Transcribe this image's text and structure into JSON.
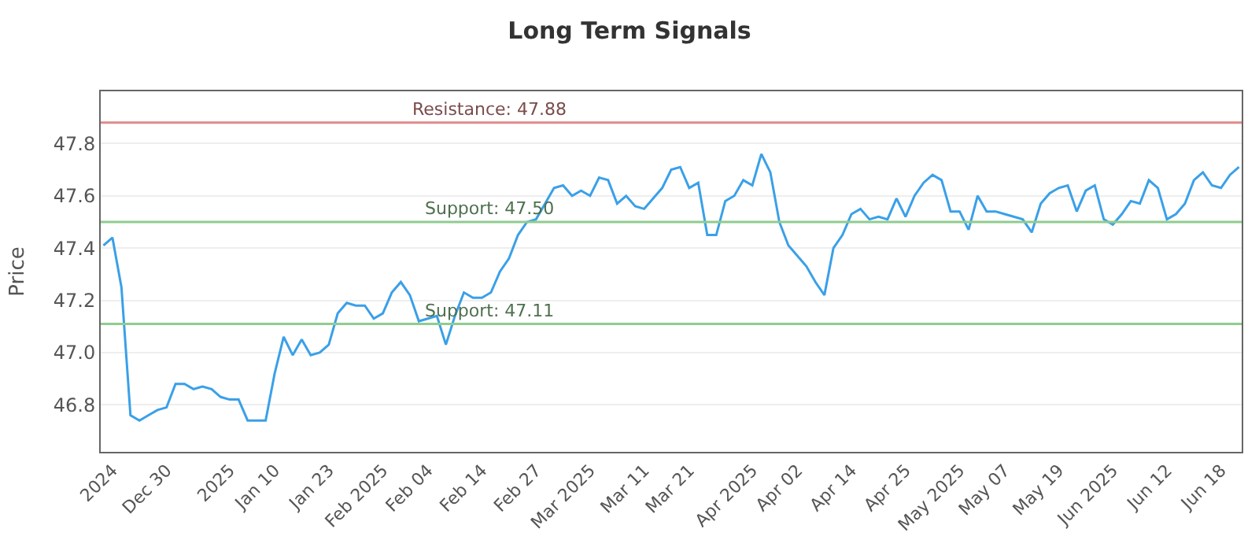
{
  "chart_data": {
    "type": "line",
    "title": "Long Term Signals",
    "ylabel": "Price",
    "categories": [
      null,
      "2024",
      null,
      null,
      null,
      null,
      null,
      "Dec 30",
      null,
      null,
      null,
      null,
      null,
      null,
      "2025",
      null,
      null,
      null,
      null,
      "Jan 10",
      null,
      null,
      null,
      null,
      null,
      "Jan 23",
      null,
      null,
      null,
      null,
      null,
      "Feb 2025",
      null,
      null,
      null,
      null,
      "Feb 04",
      null,
      null,
      null,
      null,
      null,
      "Feb 14",
      null,
      null,
      null,
      null,
      null,
      "Feb 27",
      null,
      null,
      null,
      null,
      null,
      "Mar 2025",
      null,
      null,
      null,
      null,
      null,
      "Mar 11",
      null,
      null,
      null,
      null,
      "Mar 21",
      null,
      null,
      null,
      null,
      null,
      null,
      "Apr 2025",
      null,
      null,
      null,
      null,
      "Apr 02",
      null,
      null,
      null,
      null,
      null,
      "Apr 14",
      null,
      null,
      null,
      null,
      null,
      "Apr 25",
      null,
      null,
      null,
      null,
      null,
      "May 2025",
      null,
      null,
      null,
      null,
      "May 07",
      null,
      null,
      null,
      null,
      null,
      "May 19",
      null,
      null,
      null,
      null,
      null,
      "Jun 2025",
      null,
      null,
      null,
      null,
      null,
      "Jun 12",
      null,
      null,
      null,
      null,
      null,
      "Jun 18",
      null,
      null
    ],
    "series": [
      {
        "color": "#3aa0e8",
        "values": [
          47.41,
          47.44,
          47.25,
          46.76,
          46.74,
          46.76,
          46.78,
          46.79,
          46.88,
          46.88,
          46.86,
          46.87,
          46.86,
          46.83,
          46.82,
          46.82,
          46.74,
          46.74,
          46.74,
          46.92,
          47.06,
          46.99,
          47.05,
          46.99,
          47.0,
          47.03,
          47.15,
          47.19,
          47.18,
          47.18,
          47.13,
          47.15,
          47.23,
          47.27,
          47.22,
          47.12,
          47.13,
          47.14,
          47.03,
          47.14,
          47.23,
          47.21,
          47.21,
          47.23,
          47.31,
          47.36,
          47.45,
          47.5,
          47.51,
          47.57,
          47.63,
          47.64,
          47.6,
          47.62,
          47.6,
          47.67,
          47.66,
          47.57,
          47.6,
          47.56,
          47.55,
          47.59,
          47.63,
          47.7,
          47.71,
          47.63,
          47.65,
          47.45,
          47.45,
          47.58,
          47.6,
          47.66,
          47.64,
          47.76,
          47.69,
          47.5,
          47.41,
          47.37,
          47.33,
          47.27,
          47.22,
          47.4,
          47.45,
          47.53,
          47.55,
          47.51,
          47.52,
          47.51,
          47.59,
          47.52,
          47.6,
          47.65,
          47.68,
          47.66,
          47.54,
          47.54,
          47.47,
          47.6,
          47.54,
          47.54,
          47.53,
          47.52,
          47.51,
          47.46,
          47.57,
          47.61,
          47.63,
          47.64,
          47.54,
          47.62,
          47.64,
          47.51,
          47.49,
          47.53,
          47.58,
          47.57,
          47.66,
          47.63,
          47.51,
          47.53,
          47.57,
          47.66,
          47.69,
          47.64,
          47.63,
          47.68,
          47.71
        ]
      }
    ],
    "ylim": [
      46.62,
      48.0
    ],
    "yticks": [
      46.8,
      {
        "value": 47.0,
        "label": "47.0"
      },
      47.2,
      47.4,
      47.6,
      47.8
    ],
    "grid": "y",
    "marker": "none",
    "line_style": "solid",
    "ref_lines": [
      {
        "axis": "y",
        "value": 47.88,
        "label": "Resistance: 47.88",
        "color": "#e08a8a"
      },
      {
        "axis": "y",
        "value": 47.5,
        "label": "Support: 47.50",
        "color": "#8fcc8f"
      },
      {
        "axis": "y",
        "value": 47.11,
        "label": "Support: 47.11",
        "color": "#8fcc8f"
      }
    ]
  }
}
